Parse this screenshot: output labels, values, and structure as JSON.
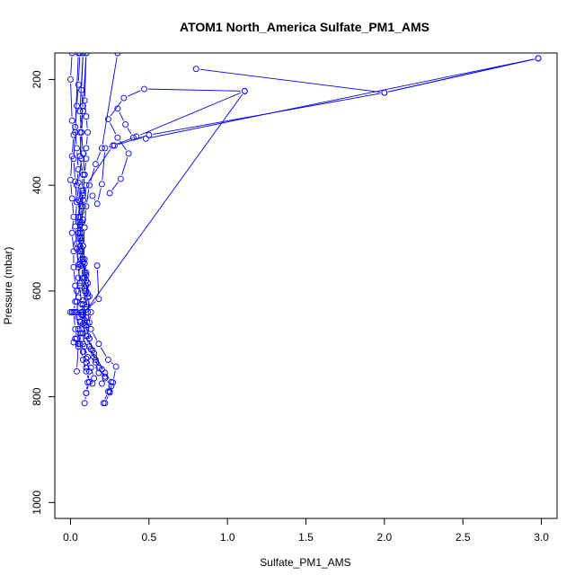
{
  "chart_data": {
    "type": "line",
    "title": "ATOM1 North_America Sulfate_PM1_AMS",
    "xlabel": "Sulfate_PM1_AMS",
    "ylabel": "Pressure (mbar)",
    "xlim": [
      -0.1,
      3.1
    ],
    "ylim": [
      1030,
      150
    ],
    "y_reversed": true,
    "x_ticks": [
      0.0,
      0.5,
      1.0,
      1.5,
      2.0,
      2.5,
      3.0
    ],
    "x_tick_labels": [
      "0.0",
      "0.5",
      "1.0",
      "1.5",
      "2.0",
      "2.5",
      "3.0"
    ],
    "y_ticks": [
      200,
      400,
      600,
      800,
      1000
    ],
    "y_tick_labels": [
      "200",
      "400",
      "600",
      "800",
      "1000"
    ],
    "color": "#0000ff",
    "marker": "open-circle",
    "grid": false,
    "series": [
      {
        "points": [
          [
            0.21,
            812
          ],
          [
            0.24,
            790
          ],
          [
            0.26,
            772
          ],
          [
            0.22,
            755
          ],
          [
            0.15,
            718
          ],
          [
            0.12,
            690
          ],
          [
            0.09,
            660
          ],
          [
            0.07,
            625
          ],
          [
            0.06,
            590
          ],
          [
            0.05,
            550
          ],
          [
            0.04,
            510
          ],
          [
            0.05,
            470
          ],
          [
            0.06,
            430
          ],
          [
            0.05,
            395
          ],
          [
            0.07,
            350
          ],
          [
            0.06,
            300
          ],
          [
            0.08,
            250
          ],
          [
            0.1,
            150
          ]
        ]
      },
      {
        "points": [
          [
            0.09,
            812
          ],
          [
            0.1,
            793
          ],
          [
            0.12,
            772
          ],
          [
            0.1,
            752
          ],
          [
            0.08,
            730
          ],
          [
            0.06,
            700
          ],
          [
            0.05,
            672
          ],
          [
            0.04,
            640
          ],
          [
            0.05,
            612
          ],
          [
            0.06,
            585
          ],
          [
            0.05,
            555
          ],
          [
            0.04,
            520
          ],
          [
            0.03,
            478
          ],
          [
            0.04,
            432
          ],
          [
            0.03,
            393
          ],
          [
            0.02,
            350
          ],
          [
            0.03,
            300
          ],
          [
            0.05,
            150
          ]
        ]
      },
      {
        "points": [
          [
            0.22,
            812
          ],
          [
            0.25,
            792
          ],
          [
            0.27,
            773
          ],
          [
            0.29,
            743
          ],
          [
            0.24,
            730
          ],
          [
            0.18,
            700
          ],
          [
            0.13,
            672
          ],
          [
            0.11,
            640
          ],
          [
            0.12,
            610
          ],
          [
            0.1,
            580
          ],
          [
            0.09,
            548
          ],
          [
            0.08,
            515
          ],
          [
            0.09,
            480
          ],
          [
            0.1,
            440
          ],
          [
            0.12,
            400
          ],
          [
            0.16,
            360
          ],
          [
            0.2,
            330
          ],
          [
            0.3,
            150
          ]
        ]
      },
      {
        "points": [
          [
            0.1,
            793
          ],
          [
            0.11,
            773
          ],
          [
            0.12,
            752
          ],
          [
            0.1,
            728
          ],
          [
            0.08,
            700
          ],
          [
            0.09,
            665
          ],
          [
            0.1,
            635
          ],
          [
            0.11,
            605
          ],
          [
            0.09,
            575
          ],
          [
            0.08,
            540
          ],
          [
            0.07,
            505
          ],
          [
            0.06,
            470
          ],
          [
            0.07,
            440
          ],
          [
            0.08,
            410
          ],
          [
            0.09,
            380
          ],
          [
            0.08,
            340
          ],
          [
            0.07,
            300
          ],
          [
            0.06,
            260
          ],
          [
            0.08,
            150
          ]
        ]
      },
      {
        "points": [
          [
            0.25,
            790
          ],
          [
            0.26,
            780
          ],
          [
            0.22,
            765
          ],
          [
            0.2,
            748
          ],
          [
            0.16,
            730
          ],
          [
            0.13,
            710
          ],
          [
            0.11,
            685
          ],
          [
            0.12,
            660
          ],
          [
            0.13,
            640
          ],
          [
            0.11,
            612
          ],
          [
            0.1,
            590
          ],
          [
            0.09,
            565
          ],
          [
            0.07,
            540
          ],
          [
            0.06,
            515
          ],
          [
            0.05,
            490
          ],
          [
            0.06,
            460
          ],
          [
            0.05,
            428
          ],
          [
            0.04,
            400
          ],
          [
            0.05,
            370
          ],
          [
            0.04,
            330
          ],
          [
            0.03,
            290
          ],
          [
            0.04,
            250
          ],
          [
            0.05,
            210
          ],
          [
            0.06,
            150
          ]
        ]
      },
      {
        "points": [
          [
            0.04,
            752
          ],
          [
            0.05,
            700
          ],
          [
            0.06,
            680
          ],
          [
            0.05,
            650
          ],
          [
            0.04,
            620
          ],
          [
            0.03,
            590
          ],
          [
            0.02,
            555
          ],
          [
            0.02,
            525
          ],
          [
            0.01,
            490
          ],
          [
            0.02,
            460
          ],
          [
            0.01,
            425
          ],
          [
            0.0,
            390
          ],
          [
            0.01,
            345
          ],
          [
            0.02,
            305
          ],
          [
            0.01,
            278
          ],
          [
            0.0,
            200
          ],
          [
            0.01,
            150
          ]
        ]
      },
      {
        "points": [
          [
            0.02,
            697
          ],
          [
            0.03,
            690
          ],
          [
            0.05,
            705
          ],
          [
            0.07,
            680
          ],
          [
            0.06,
            658
          ],
          [
            0.07,
            640
          ],
          [
            0.08,
            625
          ],
          [
            0.1,
            600
          ],
          [
            0.11,
            585
          ],
          [
            0.1,
            565
          ],
          [
            0.09,
            540
          ],
          [
            0.08,
            515
          ],
          [
            0.07,
            490
          ],
          [
            0.08,
            465
          ],
          [
            0.07,
            440
          ],
          [
            0.08,
            415
          ],
          [
            0.09,
            380
          ],
          [
            0.1,
            350
          ],
          [
            0.1,
            330
          ],
          [
            0.11,
            300
          ],
          [
            0.1,
            270
          ],
          [
            0.09,
            240
          ],
          [
            0.1,
            150
          ]
        ]
      },
      {
        "points": [
          [
            0.14,
            775
          ],
          [
            0.15,
            765
          ],
          [
            0.13,
            745
          ],
          [
            0.11,
            725
          ],
          [
            0.09,
            705
          ],
          [
            0.08,
            680
          ],
          [
            0.09,
            655
          ],
          [
            0.1,
            630
          ],
          [
            0.09,
            600
          ],
          [
            0.08,
            575
          ],
          [
            0.07,
            552
          ],
          [
            0.06,
            525
          ],
          [
            0.07,
            500
          ],
          [
            0.06,
            475
          ],
          [
            0.07,
            450
          ],
          [
            0.08,
            428
          ],
          [
            0.14,
            420
          ],
          [
            0.17,
            435
          ],
          [
            0.2,
            398
          ],
          [
            0.22,
            330
          ],
          [
            0.28,
            325
          ],
          [
            0.5,
            305
          ],
          [
            2.0,
            225
          ],
          [
            2.98,
            160
          ]
        ]
      },
      {
        "points": [
          [
            0.2,
            775
          ],
          [
            0.22,
            762
          ],
          [
            0.18,
            745
          ],
          [
            0.15,
            725
          ],
          [
            0.12,
            705
          ],
          [
            0.1,
            685
          ],
          [
            0.08,
            662
          ],
          [
            0.07,
            640
          ],
          [
            0.08,
            618
          ],
          [
            0.09,
            595
          ],
          [
            0.1,
            570
          ],
          [
            0.08,
            545
          ],
          [
            0.07,
            520
          ],
          [
            0.06,
            490
          ],
          [
            0.05,
            460
          ],
          [
            0.06,
            430
          ],
          [
            0.08,
            420
          ],
          [
            0.1,
            400
          ],
          [
            0.27,
            325
          ],
          [
            0.42,
            308
          ],
          [
            1.11,
            222
          ]
        ]
      },
      {
        "points": [
          [
            0.18,
            755
          ],
          [
            0.16,
            735
          ],
          [
            0.14,
            712
          ],
          [
            0.12,
            690
          ],
          [
            0.1,
            665
          ],
          [
            0.08,
            645
          ],
          [
            1.11,
            222
          ],
          [
            0.47,
            218
          ],
          [
            0.34,
            235
          ],
          [
            0.24,
            275
          ],
          [
            0.3,
            310
          ],
          [
            0.37,
            340
          ],
          [
            0.32,
            388
          ],
          [
            0.25,
            415
          ]
        ]
      },
      {
        "points": [
          [
            0.1,
            745
          ],
          [
            0.1,
            735
          ],
          [
            0.08,
            715
          ],
          [
            0.05,
            700
          ],
          [
            0.04,
            690
          ],
          [
            0.03,
            672
          ],
          [
            0.02,
            640
          ],
          [
            0.03,
            620
          ],
          [
            0.04,
            600
          ],
          [
            0.05,
            575
          ],
          [
            0.06,
            550
          ],
          [
            0.07,
            525
          ],
          [
            0.06,
            500
          ],
          [
            0.07,
            470
          ],
          [
            0.08,
            440
          ],
          [
            0.07,
            410
          ],
          [
            0.08,
            380
          ],
          [
            0.06,
            345
          ],
          [
            0.07,
            300
          ],
          [
            0.08,
            260
          ],
          [
            0.07,
            220
          ],
          [
            0.08,
            150
          ]
        ]
      },
      {
        "points": [
          [
            0.17,
            552
          ],
          [
            0.18,
            615
          ],
          [
            0.08,
            640
          ],
          [
            0.01,
            640
          ],
          [
            0.0,
            640
          ],
          [
            0.03,
            640
          ],
          [
            0.07,
            645
          ],
          [
            0.1,
            650
          ]
        ]
      },
      {
        "points": [
          [
            0.3,
            255
          ],
          [
            0.35,
            285
          ],
          [
            0.4,
            310
          ],
          [
            0.48,
            312
          ],
          [
            2.98,
            160
          ],
          [
            2.0,
            225
          ],
          [
            0.8,
            180
          ]
        ]
      }
    ]
  }
}
